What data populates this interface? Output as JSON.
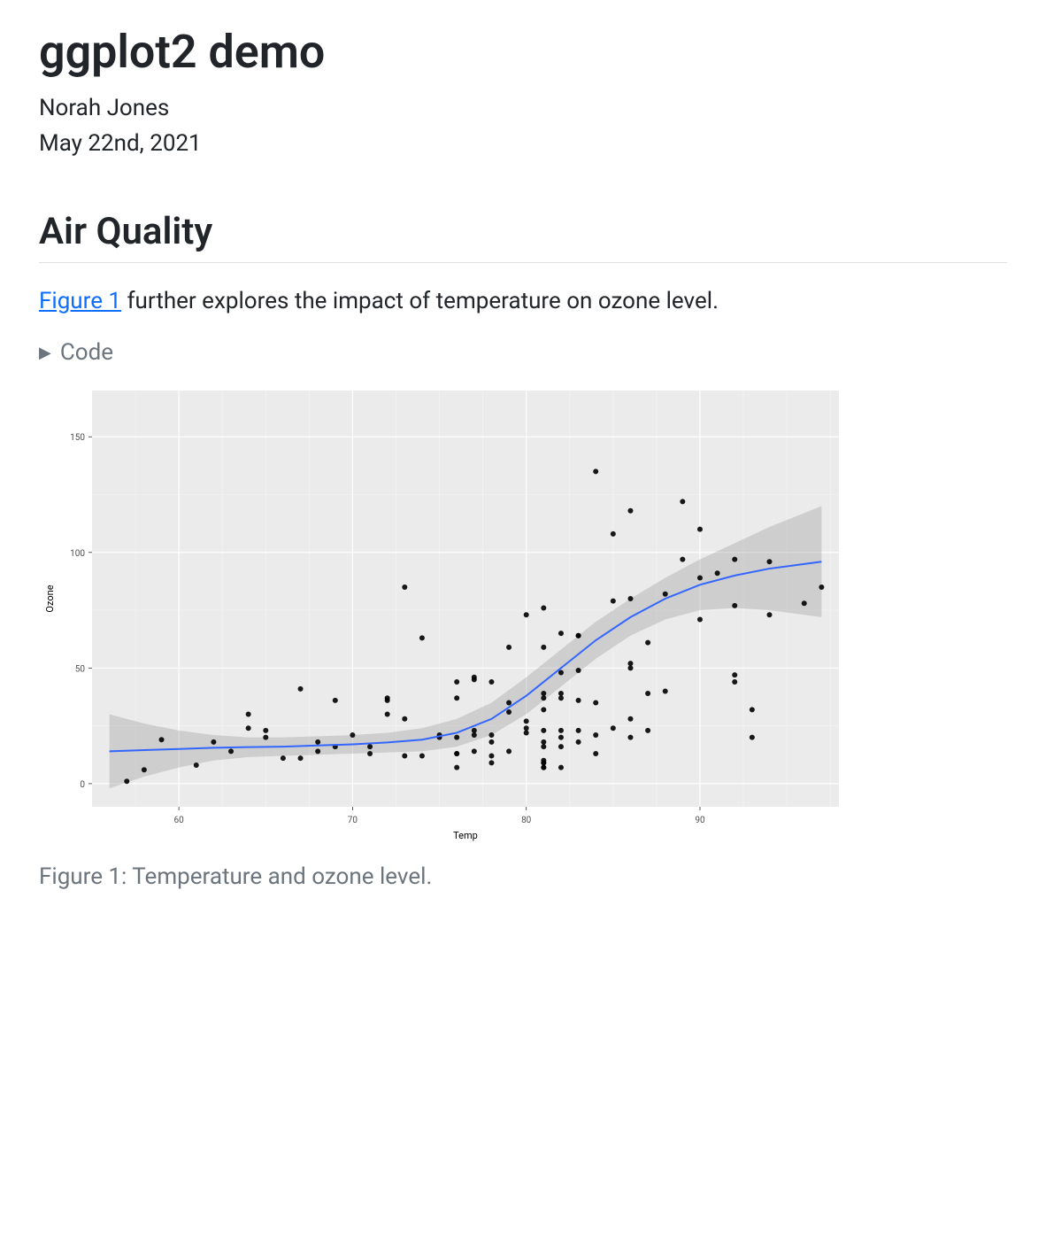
{
  "title": "ggplot2 demo",
  "author": "Norah Jones",
  "date": "May 22nd, 2021",
  "section": "Air Quality",
  "paragraph_link_text": "Figure 1",
  "paragraph_rest": " further explores the impact of temperature on ozone level.",
  "code_fold_label": "Code",
  "figure_caption": "Figure 1: Temperature and ozone level.",
  "chart": {
    "type": "scatter+smooth",
    "xlabel": "Temp",
    "ylabel": "Ozone",
    "xlim": [
      55,
      98
    ],
    "ylim": [
      -10,
      170
    ],
    "xticks": [
      60,
      70,
      80,
      90
    ],
    "yticks": [
      0,
      50,
      100,
      150
    ],
    "label_fontsize": 11,
    "tick_fontsize": 10,
    "panel_bg": "#ebebeb",
    "plot_bg": "#ffffff",
    "grid_major_color": "#ffffff",
    "grid_minor_color": "#f5f5f5",
    "axis_text_color": "#4d4d4d",
    "axis_title_color": "#000000",
    "point_color": "#000000",
    "point_opacity": 0.9,
    "point_radius": 3,
    "line_color": "#3366ff",
    "line_width": 2,
    "ribbon_color": "#999999",
    "ribbon_opacity": 0.35,
    "x_minor_ticks": [
      57.5,
      62.5,
      65,
      67.5,
      72.5,
      75,
      77.5,
      82.5,
      85,
      87.5,
      92.5,
      95,
      97.5
    ],
    "y_minor_ticks": [
      25,
      75,
      125
    ],
    "points": [
      [
        67,
        41
      ],
      [
        72,
        36
      ],
      [
        74,
        12
      ],
      [
        62,
        18
      ],
      [
        65,
        23
      ],
      [
        59,
        19
      ],
      [
        61,
        8
      ],
      [
        69,
        16
      ],
      [
        66,
        11
      ],
      [
        68,
        14
      ],
      [
        58,
        6
      ],
      [
        64,
        30
      ],
      [
        57,
        1
      ],
      [
        67,
        11
      ],
      [
        81,
        7
      ],
      [
        79,
        35
      ],
      [
        76,
        20
      ],
      [
        78,
        12
      ],
      [
        82,
        37
      ],
      [
        90,
        71
      ],
      [
        87,
        39
      ],
      [
        82,
        23
      ],
      [
        77,
        21
      ],
      [
        72,
        37
      ],
      [
        65,
        20
      ],
      [
        73,
        12
      ],
      [
        76,
        13
      ],
      [
        84,
        135
      ],
      [
        83,
        49
      ],
      [
        81,
        32
      ],
      [
        83,
        64
      ],
      [
        88,
        40
      ],
      [
        92,
        77
      ],
      [
        92,
        97
      ],
      [
        89,
        97
      ],
      [
        73,
        85
      ],
      [
        81,
        10
      ],
      [
        80,
        27
      ],
      [
        81,
        7
      ],
      [
        82,
        48
      ],
      [
        84,
        35
      ],
      [
        87,
        61
      ],
      [
        85,
        79
      ],
      [
        74,
        63
      ],
      [
        86,
        80
      ],
      [
        85,
        108
      ],
      [
        82,
        20
      ],
      [
        86,
        52
      ],
      [
        88,
        82
      ],
      [
        86,
        50
      ],
      [
        83,
        64
      ],
      [
        81,
        59
      ],
      [
        81,
        39
      ],
      [
        81,
        9
      ],
      [
        82,
        16
      ],
      [
        89,
        122
      ],
      [
        90,
        89
      ],
      [
        90,
        110
      ],
      [
        92,
        44
      ],
      [
        86,
        28
      ],
      [
        82,
        65
      ],
      [
        80,
        22
      ],
      [
        79,
        59
      ],
      [
        77,
        23
      ],
      [
        79,
        31
      ],
      [
        76,
        44
      ],
      [
        78,
        21
      ],
      [
        78,
        9
      ],
      [
        77,
        45
      ],
      [
        80,
        73
      ],
      [
        81,
        76
      ],
      [
        86,
        118
      ],
      [
        97,
        85
      ],
      [
        94,
        96
      ],
      [
        96,
        78
      ],
      [
        94,
        73
      ],
      [
        91,
        91
      ],
      [
        92,
        47
      ],
      [
        93,
        32
      ],
      [
        93,
        20
      ],
      [
        87,
        23
      ],
      [
        84,
        21
      ],
      [
        80,
        24
      ],
      [
        78,
        44
      ],
      [
        75,
        21
      ],
      [
        73,
        28
      ],
      [
        81,
        9
      ],
      [
        76,
        13
      ],
      [
        77,
        46
      ],
      [
        83,
        18
      ],
      [
        84,
        13
      ],
      [
        85,
        24
      ],
      [
        81,
        16
      ],
      [
        83,
        23
      ],
      [
        83,
        36
      ],
      [
        82,
        7
      ],
      [
        77,
        14
      ],
      [
        72,
        30
      ],
      [
        79,
        14
      ],
      [
        81,
        18
      ],
      [
        86,
        20
      ],
      [
        71,
        13
      ],
      [
        81,
        37
      ],
      [
        78,
        18
      ],
      [
        76,
        7
      ],
      [
        82,
        39
      ],
      [
        64,
        24
      ],
      [
        71,
        16
      ],
      [
        81,
        23
      ],
      [
        69,
        36
      ],
      [
        63,
        14
      ],
      [
        70,
        21
      ],
      [
        75,
        20
      ],
      [
        76,
        37
      ],
      [
        68,
        18
      ]
    ],
    "smooth_line": [
      [
        56,
        14
      ],
      [
        58,
        14.5
      ],
      [
        60,
        15
      ],
      [
        62,
        15.5
      ],
      [
        64,
        15.8
      ],
      [
        66,
        16
      ],
      [
        68,
        16.5
      ],
      [
        70,
        17
      ],
      [
        72,
        17.8
      ],
      [
        74,
        19
      ],
      [
        76,
        22
      ],
      [
        78,
        28
      ],
      [
        80,
        38
      ],
      [
        82,
        50
      ],
      [
        84,
        62
      ],
      [
        86,
        72
      ],
      [
        88,
        80
      ],
      [
        90,
        86
      ],
      [
        92,
        90
      ],
      [
        94,
        93
      ],
      [
        96,
        95
      ],
      [
        97,
        96
      ]
    ],
    "ribbon_upper": [
      [
        56,
        30
      ],
      [
        58,
        26
      ],
      [
        60,
        23
      ],
      [
        62,
        21
      ],
      [
        64,
        20
      ],
      [
        66,
        20
      ],
      [
        68,
        20.5
      ],
      [
        70,
        21
      ],
      [
        72,
        22
      ],
      [
        74,
        24
      ],
      [
        76,
        28
      ],
      [
        78,
        35
      ],
      [
        80,
        46
      ],
      [
        82,
        58
      ],
      [
        84,
        70
      ],
      [
        86,
        80
      ],
      [
        88,
        89
      ],
      [
        90,
        97
      ],
      [
        92,
        104
      ],
      [
        94,
        111
      ],
      [
        96,
        117
      ],
      [
        97,
        120
      ]
    ],
    "ribbon_lower": [
      [
        56,
        -2
      ],
      [
        58,
        3
      ],
      [
        60,
        7
      ],
      [
        62,
        10
      ],
      [
        64,
        11.5
      ],
      [
        66,
        12
      ],
      [
        68,
        12.5
      ],
      [
        70,
        13
      ],
      [
        72,
        13.5
      ],
      [
        74,
        14
      ],
      [
        76,
        16
      ],
      [
        78,
        21
      ],
      [
        80,
        30
      ],
      [
        82,
        42
      ],
      [
        84,
        54
      ],
      [
        86,
        64
      ],
      [
        88,
        71
      ],
      [
        90,
        75
      ],
      [
        92,
        76
      ],
      [
        94,
        75
      ],
      [
        96,
        73
      ],
      [
        97,
        72
      ]
    ]
  }
}
